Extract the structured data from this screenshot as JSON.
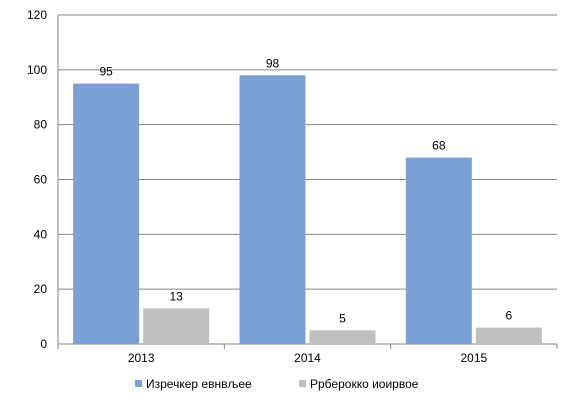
{
  "chart_data": {
    "type": "bar",
    "title": "",
    "xlabel": "",
    "ylabel": "",
    "categories": [
      "2013",
      "2014",
      "2015"
    ],
    "series": [
      {
        "name": "Изречкер евнвљее",
        "values": [
          95,
          98,
          68
        ],
        "color": "#7ba0d4"
      },
      {
        "name": "Ррберокко иоирвое",
        "values": [
          13,
          5,
          6
        ],
        "color": "#bfbfbf"
      }
    ],
    "ylim": [
      0,
      120
    ],
    "yticks": [
      0,
      20,
      40,
      60,
      80,
      100,
      120
    ],
    "grid": true,
    "legend": "bottom",
    "data_labels": true
  }
}
